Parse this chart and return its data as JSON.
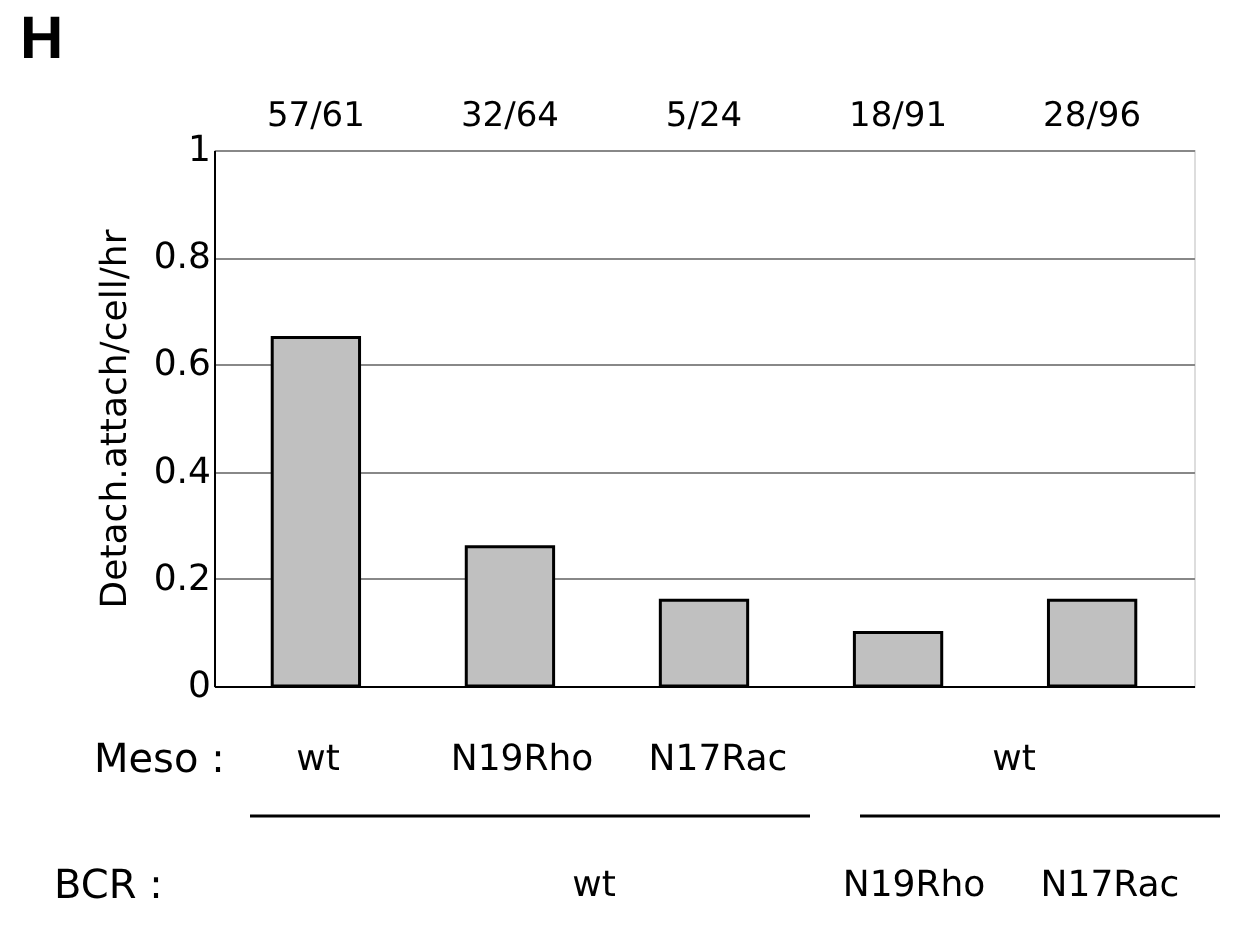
{
  "chart_data": {
    "type": "bar",
    "title": "H",
    "ylabel": "Detach.attach/cell/hr",
    "categories": [
      null,
      null,
      null,
      null,
      null
    ],
    "values": [
      0.65,
      0.26,
      0.16,
      0.1,
      0.16
    ],
    "color": "#c0c0c0",
    "ylim": [
      0,
      1
    ],
    "yticks": [
      0,
      0.2,
      0.4,
      0.6,
      0.8,
      1
    ],
    "grid": "y",
    "annotations": [
      "57/61",
      "32/64",
      "5/24",
      "18/91",
      "28/96",
      "Meso :",
      "wt",
      "N19Rho",
      "N17Rac",
      "wt",
      "BCR :",
      "wt",
      "N19Rho",
      "N17Rac"
    ]
  }
}
